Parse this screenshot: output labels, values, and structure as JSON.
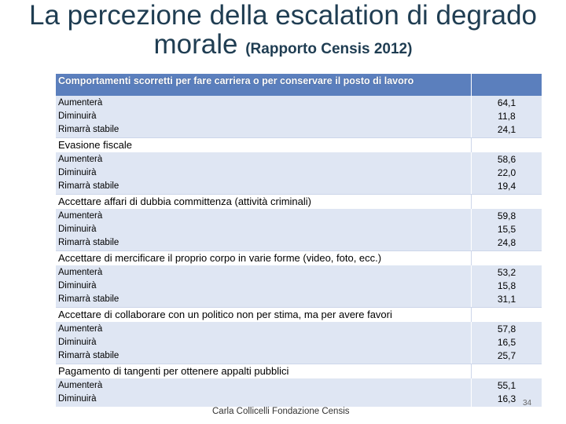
{
  "title": {
    "line1": "La percezione della escalation di degrado",
    "line2": "morale",
    "subtitle": "(Rapporto Censis 2012)"
  },
  "table": {
    "header": "Comportamenti scorretti per fare carriera o per conservare il posto di lavoro",
    "first_group": {
      "rows": [
        {
          "label": "Aumenterà",
          "value": "64,1"
        },
        {
          "label": "Diminuirà",
          "value": "11,8"
        },
        {
          "label": "Rimarrà stabile",
          "value": "24,1"
        }
      ]
    },
    "sections": [
      {
        "title": "Evasione fiscale",
        "rows": [
          {
            "label": "Aumenterà",
            "value": "58,6"
          },
          {
            "label": "Diminuirà",
            "value": "22,0"
          },
          {
            "label": "Rimarrà stabile",
            "value": "19,4"
          }
        ]
      },
      {
        "title": "Accettare affari di dubbia committenza (attività criminali)",
        "rows": [
          {
            "label": "Aumenterà",
            "value": "59,8"
          },
          {
            "label": "Diminuirà",
            "value": "15,5"
          },
          {
            "label": "Rimarrà stabile",
            "value": "24,8"
          }
        ]
      },
      {
        "title": "Accettare di mercificare il proprio corpo in varie forme (video, foto, ecc.)",
        "rows": [
          {
            "label": "Aumenterà",
            "value": "53,2"
          },
          {
            "label": "Diminuirà",
            "value": "15,8"
          },
          {
            "label": "Rimarrà stabile",
            "value": "31,1"
          }
        ]
      },
      {
        "title": "Accettare di collaborare con un politico non per stima, ma per avere favori",
        "rows": [
          {
            "label": "Aumenterà",
            "value": "57,8"
          },
          {
            "label": "Diminuirà",
            "value": "16,5"
          },
          {
            "label": "Rimarrà stabile",
            "value": "25,7"
          }
        ]
      },
      {
        "title": "Pagamento di tangenti per ottenere appalti pubblici",
        "rows": [
          {
            "label": "Aumenterà",
            "value": "55,1"
          },
          {
            "label": "Diminuirà",
            "value": "16,3"
          }
        ]
      }
    ]
  },
  "footer": "Carla Collicelli Fondazione Censis",
  "page_number": "34"
}
